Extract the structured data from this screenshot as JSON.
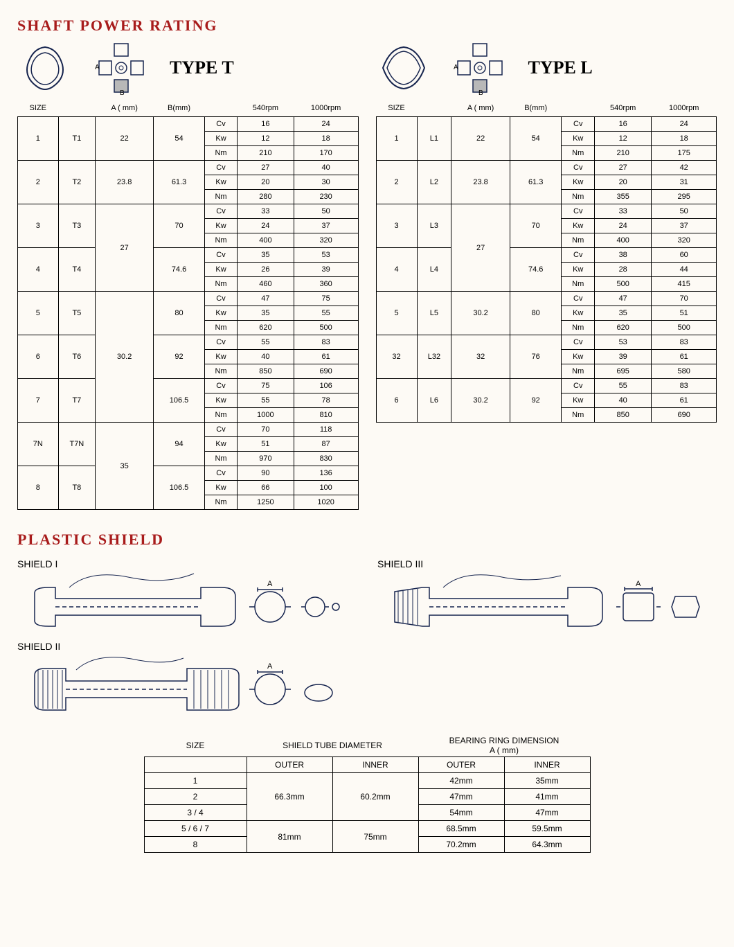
{
  "titles": {
    "shaft": "SHAFT POWER RATING",
    "plastic": "PLASTIC SHIELD",
    "typeT": "TYPE T",
    "typeL": "TYPE L"
  },
  "colors": {
    "title": "#a81b1b",
    "line": "#17254f",
    "bg": "#fdfaf5"
  },
  "powerHeaders": [
    "SIZE",
    "",
    "A ( mm)",
    "B(mm)",
    "",
    "540rpm",
    "1000rpm"
  ],
  "metrics": [
    "Cv",
    "Kw",
    "Nm"
  ],
  "typeT": [
    {
      "size": "1",
      "code": "T1",
      "a": "22",
      "b": "54",
      "vals": [
        [
          "16",
          "24"
        ],
        [
          "12",
          "18"
        ],
        [
          "210",
          "170"
        ]
      ]
    },
    {
      "size": "2",
      "code": "T2",
      "a": "23.8",
      "b": "61.3",
      "vals": [
        [
          "27",
          "40"
        ],
        [
          "20",
          "30"
        ],
        [
          "280",
          "230"
        ]
      ]
    },
    {
      "size": "3",
      "code": "T3",
      "a": "27",
      "b": "70",
      "aSpan": 2,
      "vals": [
        [
          "33",
          "50"
        ],
        [
          "24",
          "37"
        ],
        [
          "400",
          "320"
        ]
      ]
    },
    {
      "size": "4",
      "code": "T4",
      "a": "",
      "b": "74.6",
      "vals": [
        [
          "35",
          "53"
        ],
        [
          "26",
          "39"
        ],
        [
          "460",
          "360"
        ]
      ]
    },
    {
      "size": "5",
      "code": "T5",
      "a": "30.2",
      "b": "80",
      "aSpan": 3,
      "vals": [
        [
          "47",
          "75"
        ],
        [
          "35",
          "55"
        ],
        [
          "620",
          "500"
        ]
      ]
    },
    {
      "size": "6",
      "code": "T6",
      "a": "",
      "b": "92",
      "vals": [
        [
          "55",
          "83"
        ],
        [
          "40",
          "61"
        ],
        [
          "850",
          "690"
        ]
      ]
    },
    {
      "size": "7",
      "code": "T7",
      "a": "",
      "b": "106.5",
      "vals": [
        [
          "75",
          "106"
        ],
        [
          "55",
          "78"
        ],
        [
          "1000",
          "810"
        ]
      ]
    },
    {
      "size": "7N",
      "code": "T7N",
      "a": "35",
      "b": "94",
      "aSpan": 2,
      "vals": [
        [
          "70",
          "118"
        ],
        [
          "51",
          "87"
        ],
        [
          "970",
          "830"
        ]
      ]
    },
    {
      "size": "8",
      "code": "T8",
      "a": "",
      "b": "106.5",
      "vals": [
        [
          "90",
          "136"
        ],
        [
          "66",
          "100"
        ],
        [
          "1250",
          "1020"
        ]
      ]
    }
  ],
  "typeL": [
    {
      "size": "1",
      "code": "L1",
      "a": "22",
      "b": "54",
      "vals": [
        [
          "16",
          "24"
        ],
        [
          "12",
          "18"
        ],
        [
          "210",
          "175"
        ]
      ]
    },
    {
      "size": "2",
      "code": "L2",
      "a": "23.8",
      "b": "61.3",
      "vals": [
        [
          "27",
          "42"
        ],
        [
          "20",
          "31"
        ],
        [
          "355",
          "295"
        ]
      ]
    },
    {
      "size": "3",
      "code": "L3",
      "a": "27",
      "b": "70",
      "aSpan": 2,
      "vals": [
        [
          "33",
          "50"
        ],
        [
          "24",
          "37"
        ],
        [
          "400",
          "320"
        ]
      ]
    },
    {
      "size": "4",
      "code": "L4",
      "a": "",
      "b": "74.6",
      "vals": [
        [
          "38",
          "60"
        ],
        [
          "28",
          "44"
        ],
        [
          "500",
          "415"
        ]
      ]
    },
    {
      "size": "5",
      "code": "L5",
      "a": "30.2",
      "b": "80",
      "vals": [
        [
          "47",
          "70"
        ],
        [
          "35",
          "51"
        ],
        [
          "620",
          "500"
        ]
      ]
    },
    {
      "size": "32",
      "code": "L32",
      "a": "32",
      "b": "76",
      "vals": [
        [
          "53",
          "83"
        ],
        [
          "39",
          "61"
        ],
        [
          "695",
          "580"
        ]
      ]
    },
    {
      "size": "6",
      "code": "L6",
      "a": "30.2",
      "b": "92",
      "vals": [
        [
          "55",
          "83"
        ],
        [
          "40",
          "61"
        ],
        [
          "850",
          "690"
        ]
      ]
    }
  ],
  "shieldLabels": {
    "s1": "SHIELD I",
    "s2": "SHIELD II",
    "s3": "SHIELD III"
  },
  "shieldTable": {
    "headers": {
      "size": "SIZE",
      "tube": "SHIELD TUBE DIAMETER",
      "ring": "BEARING RING DIMENSION",
      "ringSub": "A ( mm)",
      "outer": "OUTER",
      "inner": "INNER"
    },
    "rows": [
      {
        "size": "1",
        "tubeOuter": "66.3mm",
        "tubeInner": "60.2mm",
        "tubeSpan": 3,
        "ringOuter": "42mm",
        "ringInner": "35mm"
      },
      {
        "size": "2",
        "ringOuter": "47mm",
        "ringInner": "41mm"
      },
      {
        "size": "3 / 4",
        "ringOuter": "54mm",
        "ringInner": "47mm"
      },
      {
        "size": "5 / 6 / 7",
        "tubeOuter": "81mm",
        "tubeInner": "75mm",
        "tubeSpan": 2,
        "ringOuter": "68.5mm",
        "ringInner": "59.5mm"
      },
      {
        "size": "8",
        "ringOuter": "70.2mm",
        "ringInner": "64.3mm"
      }
    ]
  }
}
